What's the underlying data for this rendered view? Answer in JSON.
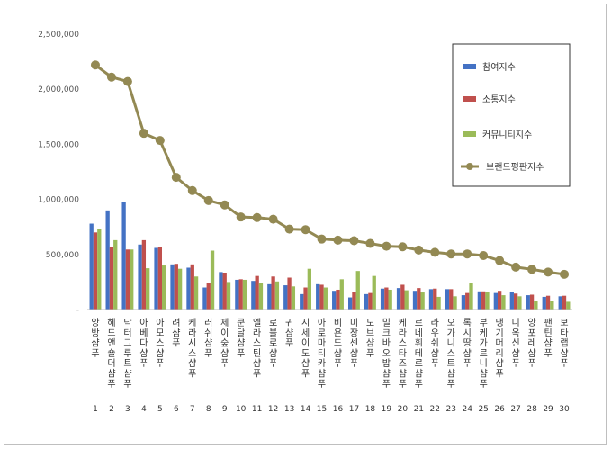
{
  "chart_data": {
    "type": "bar",
    "categories": [
      "앙방샴푸",
      "헤드앤숄더샴푸",
      "닥터그루트샴푸",
      "아베다샴푸",
      "아모스샴푸",
      "려샴푸",
      "케라시스샴푸",
      "러쉬샴푸",
      "제이숲샴푸",
      "쿤달샴푸",
      "엘라스틴샴푸",
      "로블로샴푸",
      "귀샴푸",
      "시세이도샴푸",
      "아로마티카샴푸",
      "비욘드샴푸",
      "미장센샴푸",
      "도브샴푸",
      "밀크바오밥샴푸",
      "케라스타즈샴푸",
      "르네휘테르샴푸",
      "라우쉬샴푸",
      "오가니스트샴푸",
      "록시땅샴푸",
      "부케가르니샴푸",
      "댕기머리샴푸",
      "니옥신샴푸",
      "앙포레샴푸",
      "팬틴샴푸",
      "보타랩샴푸"
    ],
    "rank_labels": [
      "1",
      "2",
      "3",
      "4",
      "5",
      "6",
      "7",
      "8",
      "9",
      "10",
      "11",
      "12",
      "13",
      "14",
      "15",
      "16",
      "17",
      "18",
      "19",
      "20",
      "21",
      "22",
      "23",
      "24",
      "25",
      "26",
      "27",
      "28",
      "29",
      "30"
    ],
    "series": [
      {
        "name": "참여지수",
        "color": "#4472c4",
        "kind": "bar",
        "values": [
          780000,
          900000,
          975000,
          590000,
          560000,
          410000,
          380000,
          200000,
          340000,
          270000,
          260000,
          230000,
          220000,
          140000,
          230000,
          170000,
          110000,
          140000,
          190000,
          195000,
          170000,
          185000,
          185000,
          130000,
          165000,
          150000,
          160000,
          130000,
          115000,
          120000
        ]
      },
      {
        "name": "소통지수",
        "color": "#c0504d",
        "kind": "bar",
        "values": [
          700000,
          570000,
          545000,
          630000,
          570000,
          415000,
          410000,
          245000,
          335000,
          275000,
          305000,
          300000,
          290000,
          200000,
          225000,
          180000,
          160000,
          150000,
          200000,
          225000,
          195000,
          190000,
          185000,
          150000,
          165000,
          170000,
          145000,
          135000,
          125000,
          125000
        ]
      },
      {
        "name": "커뮤니티지수",
        "color": "#9bbb59",
        "kind": "bar",
        "values": [
          730000,
          630000,
          545000,
          375000,
          400000,
          370000,
          300000,
          535000,
          250000,
          270000,
          240000,
          255000,
          210000,
          370000,
          200000,
          275000,
          350000,
          305000,
          180000,
          175000,
          155000,
          115000,
          120000,
          240000,
          160000,
          130000,
          120000,
          80000,
          80000,
          70000
        ]
      },
      {
        "name": "브랜드평판지수",
        "color": "#938953",
        "kind": "line",
        "values": [
          2220000,
          2110000,
          2070000,
          1600000,
          1535000,
          1200000,
          1080000,
          990000,
          950000,
          840000,
          835000,
          820000,
          730000,
          725000,
          640000,
          630000,
          625000,
          600000,
          575000,
          570000,
          540000,
          520000,
          505000,
          505000,
          490000,
          445000,
          385000,
          365000,
          340000,
          320000
        ]
      }
    ],
    "y_ticks": [
      "-",
      "500,000",
      "1,000,000",
      "1,500,000",
      "2,000,000",
      "2,500,000"
    ],
    "ylim": [
      0,
      2500000
    ],
    "grid": false,
    "legend_position": "top-right",
    "title": "",
    "xlabel": "",
    "ylabel": ""
  }
}
